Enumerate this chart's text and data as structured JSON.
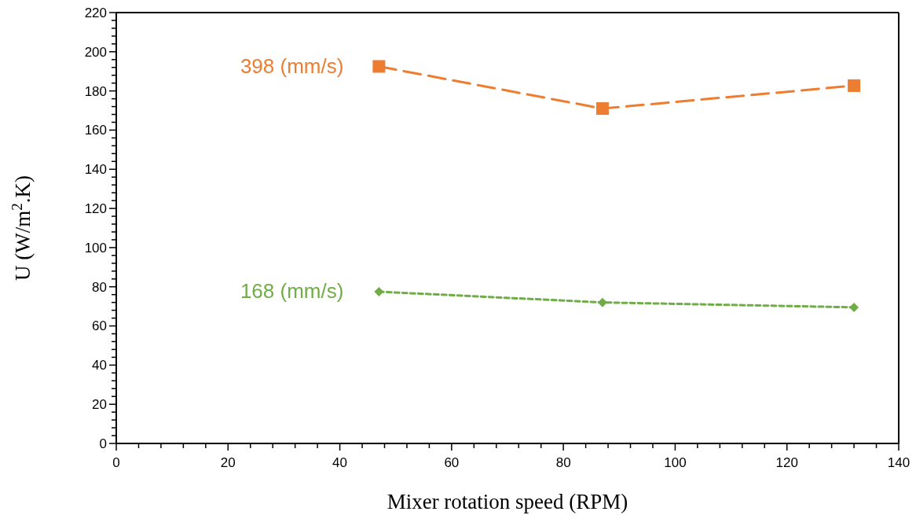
{
  "chart_data": {
    "type": "line",
    "xlabel": "Mixer rotation speed (RPM)",
    "ylabel": "U (W/m$^{2}$.K)",
    "x": [
      47,
      87,
      132
    ],
    "series": [
      {
        "name": "398 (mm/s)",
        "color": "#ed7d31",
        "values": [
          192.5,
          171,
          182.7
        ],
        "marker": "square",
        "line_style": "dashed"
      },
      {
        "name": "168 (mm/s)",
        "color": "#70ad47",
        "values": [
          77.5,
          72,
          69.5
        ],
        "marker": "diamond",
        "line_style": "dotted"
      }
    ],
    "xlim": [
      0,
      140
    ],
    "ylim": [
      0,
      220
    ],
    "xticks": [
      0,
      20,
      40,
      60,
      80,
      100,
      120,
      140,
      {
        "value": 4,
        "label": null
      },
      {
        "value": 8,
        "label": null
      },
      {
        "value": 12,
        "label": null
      },
      {
        "value": 16,
        "label": null
      },
      {
        "value": 24,
        "label": null
      },
      {
        "value": 28,
        "label": null
      },
      {
        "value": 32,
        "label": null
      },
      {
        "value": 36,
        "label": null
      },
      {
        "value": 44,
        "label": null
      },
      {
        "value": 48,
        "label": null
      },
      {
        "value": 52,
        "label": null
      },
      {
        "value": 56,
        "label": null
      },
      {
        "value": 64,
        "label": null
      },
      {
        "value": 68,
        "label": null
      },
      {
        "value": 72,
        "label": null
      },
      {
        "value": 76,
        "label": null
      },
      {
        "value": 84,
        "label": null
      },
      {
        "value": 88,
        "label": null
      },
      {
        "value": 92,
        "label": null
      },
      {
        "value": 96,
        "label": null
      },
      {
        "value": 104,
        "label": null
      },
      {
        "value": 108,
        "label": null
      },
      {
        "value": 112,
        "label": null
      },
      {
        "value": 116,
        "label": null
      },
      {
        "value": 124,
        "label": null
      },
      {
        "value": 128,
        "label": null
      },
      {
        "value": 132,
        "label": null
      },
      {
        "value": 136,
        "label": null
      }
    ],
    "yticks": [
      0,
      20,
      40,
      60,
      80,
      100,
      120,
      140,
      160,
      180,
      200,
      220,
      {
        "value": 4,
        "label": null
      },
      {
        "value": 8,
        "label": null
      },
      {
        "value": 12,
        "label": null
      },
      {
        "value": 16,
        "label": null
      },
      {
        "value": 24,
        "label": null
      },
      {
        "value": 28,
        "label": null
      },
      {
        "value": 32,
        "label": null
      },
      {
        "value": 36,
        "label": null
      },
      {
        "value": 44,
        "label": null
      },
      {
        "value": 48,
        "label": null
      },
      {
        "value": 52,
        "label": null
      },
      {
        "value": 56,
        "label": null
      },
      {
        "value": 64,
        "label": null
      },
      {
        "value": 68,
        "label": null
      },
      {
        "value": 72,
        "label": null
      },
      {
        "value": 76,
        "label": null
      },
      {
        "value": 84,
        "label": null
      },
      {
        "value": 88,
        "label": null
      },
      {
        "value": 92,
        "label": null
      },
      {
        "value": 96,
        "label": null
      },
      {
        "value": 104,
        "label": null
      },
      {
        "value": 108,
        "label": null
      },
      {
        "value": 112,
        "label": null
      },
      {
        "value": 116,
        "label": null
      },
      {
        "value": 124,
        "label": null
      },
      {
        "value": 128,
        "label": null
      },
      {
        "value": 132,
        "label": null
      },
      {
        "value": 136,
        "label": null
      },
      {
        "value": 144,
        "label": null
      },
      {
        "value": 148,
        "label": null
      },
      {
        "value": 152,
        "label": null
      },
      {
        "value": 156,
        "label": null
      },
      {
        "value": 164,
        "label": null
      },
      {
        "value": 168,
        "label": null
      },
      {
        "value": 172,
        "label": null
      },
      {
        "value": 176,
        "label": null
      },
      {
        "value": 184,
        "label": null
      },
      {
        "value": 188,
        "label": null
      },
      {
        "value": 192,
        "label": null
      },
      {
        "value": 196,
        "label": null
      },
      {
        "value": 204,
        "label": null
      },
      {
        "value": 208,
        "label": null
      },
      {
        "value": 212,
        "label": null
      },
      {
        "value": 216,
        "label": null
      }
    ],
    "grid": false,
    "legend": false
  }
}
